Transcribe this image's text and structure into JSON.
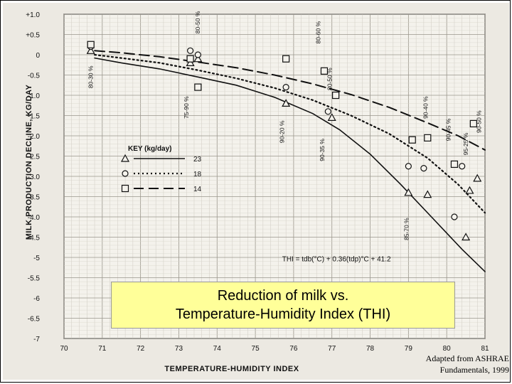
{
  "caption": {
    "line1": "Reduction of milk vs.",
    "line2": "Temperature-Humidity Index (THI)"
  },
  "source": {
    "line1": "Adapted from ASHRAE",
    "line2": "Fundamentals, 1999"
  },
  "chart_data": {
    "type": "scatter",
    "xlabel": "TEMPERATURE-HUMIDITY INDEX",
    "ylabel": "MILK PRODUCTION DECLINE, KG/DAY",
    "xlim": [
      70,
      81
    ],
    "ylim": [
      -7,
      1
    ],
    "x_ticks": [
      70,
      71,
      72,
      73,
      74,
      75,
      76,
      77,
      78,
      79,
      80,
      81
    ],
    "y_ticks": [
      1,
      0.5,
      0,
      -0.5,
      -1,
      -1.5,
      -2,
      -2.5,
      -3,
      -3.5,
      -4,
      -4.5,
      -5,
      -5.5,
      -6,
      -6.5,
      -7
    ],
    "x_tick_labels": [
      "70",
      "71",
      "72",
      "73",
      "74",
      "75",
      "76",
      "77",
      "78",
      "79",
      "80",
      "81"
    ],
    "y_tick_labels": [
      "+1.0",
      "+0.5",
      "0",
      "-0.5",
      "-1.0",
      "-1.5",
      "-2.0",
      "-2.5",
      "-3.0",
      "-3.5",
      "-4.0",
      "-4.5",
      "-5",
      "-5.5",
      "-6",
      "-6.5",
      "-7"
    ],
    "grid": true,
    "legend": {
      "title": "KEY (kg/day)",
      "placement": "center-left",
      "entries": [
        {
          "label": "23",
          "marker": "triangle",
          "line": "solid"
        },
        {
          "label": "18",
          "marker": "circle",
          "line": "dotted"
        },
        {
          "label": "14",
          "marker": "square",
          "line": "dashed"
        }
      ]
    },
    "series": [
      {
        "name": "23",
        "marker": "triangle",
        "line_style": "solid",
        "curve": [
          [
            70.8,
            -0.08
          ],
          [
            71.5,
            -0.2
          ],
          [
            72.5,
            -0.35
          ],
          [
            73.5,
            -0.55
          ],
          [
            74.5,
            -0.75
          ],
          [
            75.5,
            -1.05
          ],
          [
            76.5,
            -1.45
          ],
          [
            77.2,
            -1.85
          ],
          [
            78.0,
            -2.45
          ],
          [
            78.8,
            -3.2
          ],
          [
            79.6,
            -4.0
          ],
          [
            80.4,
            -4.8
          ],
          [
            81.0,
            -5.35
          ]
        ],
        "points": [
          [
            70.7,
            0.1
          ],
          [
            73.3,
            -0.2
          ],
          [
            73.5,
            -0.1
          ],
          [
            75.8,
            -1.2
          ],
          [
            77.0,
            -1.55
          ],
          [
            79.0,
            -3.4
          ],
          [
            79.5,
            -3.45
          ],
          [
            80.5,
            -4.5
          ],
          [
            80.6,
            -3.35
          ],
          [
            80.8,
            -3.05
          ]
        ]
      },
      {
        "name": "18",
        "marker": "circle",
        "line_style": "dotted",
        "curve": [
          [
            70.8,
            0.0
          ],
          [
            71.5,
            -0.08
          ],
          [
            72.5,
            -0.2
          ],
          [
            73.5,
            -0.38
          ],
          [
            74.5,
            -0.58
          ],
          [
            75.5,
            -0.82
          ],
          [
            76.5,
            -1.12
          ],
          [
            77.5,
            -1.5
          ],
          [
            78.5,
            -1.95
          ],
          [
            79.5,
            -2.55
          ],
          [
            80.3,
            -3.2
          ],
          [
            81.0,
            -3.9
          ]
        ],
        "points": [
          [
            70.7,
            0.2
          ],
          [
            73.3,
            0.1
          ],
          [
            73.5,
            0.0
          ],
          [
            75.8,
            -0.8
          ],
          [
            76.9,
            -1.4
          ],
          [
            79.0,
            -2.75
          ],
          [
            79.4,
            -2.8
          ],
          [
            80.2,
            -4.0
          ],
          [
            80.4,
            -2.75
          ]
        ]
      },
      {
        "name": "14",
        "marker": "square",
        "line_style": "dashed",
        "curve": [
          [
            70.8,
            0.1
          ],
          [
            71.5,
            0.05
          ],
          [
            72.5,
            -0.05
          ],
          [
            73.5,
            -0.18
          ],
          [
            74.5,
            -0.32
          ],
          [
            75.5,
            -0.5
          ],
          [
            76.5,
            -0.72
          ],
          [
            77.5,
            -0.98
          ],
          [
            78.5,
            -1.3
          ],
          [
            79.5,
            -1.68
          ],
          [
            80.3,
            -2.0
          ],
          [
            81.0,
            -2.35
          ]
        ],
        "points": [
          [
            70.7,
            0.25
          ],
          [
            73.3,
            -0.1
          ],
          [
            73.5,
            -0.8
          ],
          [
            75.8,
            -0.1
          ],
          [
            76.8,
            -0.4
          ],
          [
            77.1,
            -1.0
          ],
          [
            79.1,
            -2.1
          ],
          [
            79.5,
            -2.05
          ],
          [
            80.2,
            -2.7
          ],
          [
            80.7,
            -1.7
          ]
        ]
      }
    ],
    "annotations": [
      {
        "text": "80-30 %",
        "x": 70.75,
        "y": -0.55,
        "rotation": -90
      },
      {
        "text": "75-90 %",
        "x": 73.25,
        "y": -1.3,
        "rotation": -90
      },
      {
        "text": "80-50 %",
        "x": 73.55,
        "y": 0.8,
        "rotation": -90
      },
      {
        "text": "80-60 %",
        "x": 76.7,
        "y": 0.55,
        "rotation": -90
      },
      {
        "text": "80-50 %",
        "x": 77.0,
        "y": -0.6,
        "rotation": -90
      },
      {
        "text": "90-20 %",
        "x": 75.75,
        "y": -1.9,
        "rotation": -90
      },
      {
        "text": "90-35 %",
        "x": 76.8,
        "y": -2.35,
        "rotation": -90
      },
      {
        "text": "90-40 %",
        "x": 79.5,
        "y": -1.3,
        "rotation": -90
      },
      {
        "text": "90-45 %",
        "x": 80.1,
        "y": -1.85,
        "rotation": -90
      },
      {
        "text": "95-25 %",
        "x": 80.55,
        "y": -2.2,
        "rotation": -90
      },
      {
        "text": "90-50 %",
        "x": 80.9,
        "y": -1.65,
        "rotation": -90
      },
      {
        "text": "85-70 %",
        "x": 79.0,
        "y": -4.3,
        "rotation": -90
      }
    ],
    "formula": {
      "text": "THI = tdb(°C) + 0.36(tdp)°C + 41.2",
      "x": 75.7,
      "y": -5.1
    }
  }
}
